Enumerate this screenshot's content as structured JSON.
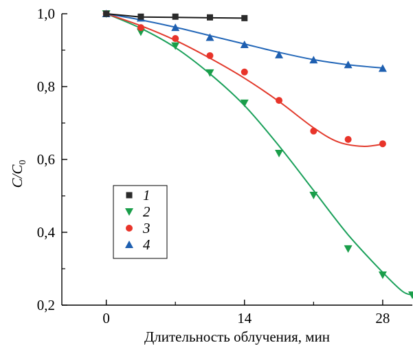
{
  "chart_data": {
    "type": "line",
    "xlabel": "Длительность облучения, мин",
    "ylabel_main": "C/C",
    "ylabel_sub": "0",
    "xlim": [
      -4.5,
      31
    ],
    "ylim": [
      0.2,
      1.0
    ],
    "x_ticks": [
      0,
      14,
      28
    ],
    "x_tick_labels": [
      "0",
      "14",
      "28"
    ],
    "y_ticks": [
      0.2,
      0.4,
      0.6,
      0.8,
      1.0
    ],
    "y_tick_labels": [
      "0,2",
      "0,4",
      "0,6",
      "0,8",
      "1,0"
    ],
    "legend_position": "lower-left",
    "series": [
      {
        "name": "1",
        "color": "#2b2b2b",
        "marker": "square",
        "line_color": "#1a1a1a",
        "x": [
          0,
          3.5,
          7,
          10.5,
          14
        ],
        "y": [
          1.0,
          0.992,
          0.992,
          0.99,
          0.988
        ],
        "curve": [
          [
            0,
            1.0
          ],
          [
            3.5,
            0.991
          ],
          [
            7,
            0.99
          ],
          [
            10.5,
            0.989
          ],
          [
            14,
            0.988
          ]
        ]
      },
      {
        "name": "2",
        "color": "#1a9e4a",
        "marker": "triangle-down",
        "line_color": "#1aa05a",
        "x": [
          0,
          3.5,
          7,
          10.5,
          14,
          17.5,
          21,
          24.5,
          28,
          31
        ],
        "y": [
          1.0,
          0.95,
          0.912,
          0.838,
          0.755,
          0.617,
          0.502,
          0.355,
          0.283,
          0.228
        ],
        "curve": [
          [
            0,
            1.0
          ],
          [
            3.5,
            0.96
          ],
          [
            7,
            0.907
          ],
          [
            10.5,
            0.835
          ],
          [
            14,
            0.748
          ],
          [
            17.5,
            0.637
          ],
          [
            21,
            0.515
          ],
          [
            24.5,
            0.393
          ],
          [
            28,
            0.29
          ],
          [
            30,
            0.238
          ],
          [
            31,
            0.228
          ]
        ]
      },
      {
        "name": "3",
        "color": "#e8342a",
        "marker": "circle",
        "line_color": "#e23a2c",
        "x": [
          0,
          3.5,
          7,
          10.5,
          14,
          17.5,
          21,
          24.5,
          28
        ],
        "y": [
          1.0,
          0.962,
          0.932,
          0.885,
          0.84,
          0.762,
          0.678,
          0.655,
          0.643
        ],
        "curve": [
          [
            0,
            1.0
          ],
          [
            3.5,
            0.967
          ],
          [
            7,
            0.927
          ],
          [
            10.5,
            0.878
          ],
          [
            14,
            0.823
          ],
          [
            17.5,
            0.759
          ],
          [
            21,
            0.687
          ],
          [
            23.5,
            0.648
          ],
          [
            26,
            0.636
          ],
          [
            28,
            0.642
          ]
        ]
      },
      {
        "name": "4",
        "color": "#1e5fb0",
        "marker": "triangle-up",
        "line_color": "#2367b8",
        "x": [
          0,
          3.5,
          7,
          10.5,
          14,
          17.5,
          21,
          24.5,
          28
        ],
        "y": [
          1.0,
          0.988,
          0.962,
          0.935,
          0.915,
          0.887,
          0.873,
          0.86,
          0.85
        ],
        "curve": [
          [
            0,
            1.0
          ],
          [
            3.5,
            0.983
          ],
          [
            7,
            0.963
          ],
          [
            10.5,
            0.94
          ],
          [
            14,
            0.917
          ],
          [
            17.5,
            0.894
          ],
          [
            21,
            0.874
          ],
          [
            24.5,
            0.86
          ],
          [
            28,
            0.851
          ]
        ]
      }
    ]
  }
}
